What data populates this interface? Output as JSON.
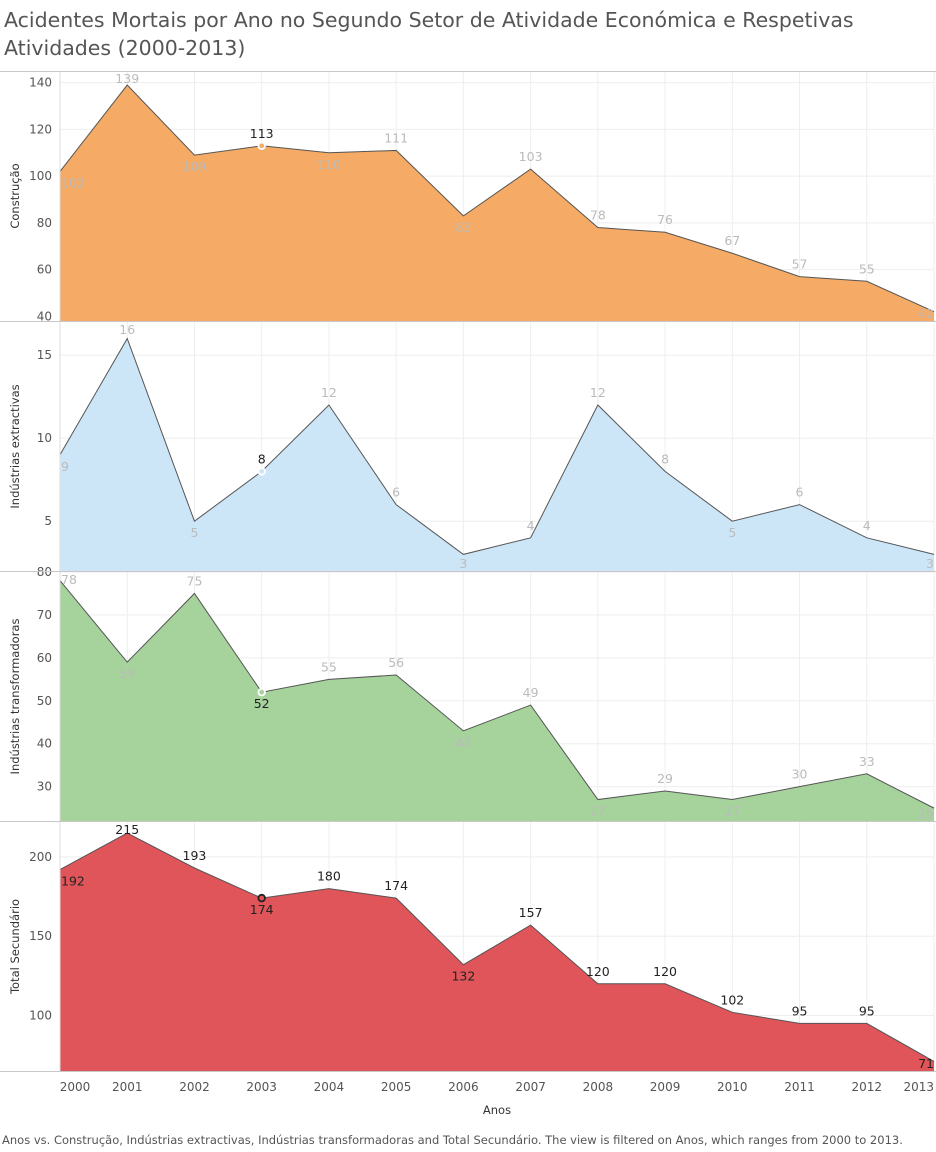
{
  "title": "Acidentes Mortais por Ano no Segundo Setor de Atividade Económica e Respetivas Atividades (2000-2013)",
  "caption": "Anos vs. Construção, Indústrias extractivas, Indústrias transformadoras and Total Secundário.  The view is filtered on Anos, which ranges from 2000 to 2013.",
  "chart_data": {
    "type": "area",
    "xlabel": "Anos",
    "x": [
      2000,
      2001,
      2002,
      2003,
      2004,
      2005,
      2006,
      2007,
      2008,
      2009,
      2010,
      2011,
      2012,
      2013
    ],
    "highlight_x": 2003,
    "grid": true,
    "series": [
      {
        "name": "Construção",
        "color": "#f5ab65",
        "values": [
          102,
          139,
          109,
          113,
          110,
          111,
          83,
          103,
          78,
          76,
          67,
          57,
          55,
          42
        ],
        "labels_shown": [
          "102",
          "139",
          "109",
          "113",
          "110",
          "111",
          "83",
          "103",
          "78",
          "76",
          "67",
          "57",
          "55",
          "42"
        ],
        "ylim": [
          38,
          145
        ],
        "yticks": [
          40,
          60,
          80,
          100,
          120,
          140
        ]
      },
      {
        "name": "Indústrias extractivas",
        "color": "#cce6f8",
        "values": [
          9,
          16,
          5,
          8,
          12,
          6,
          3,
          4,
          12,
          8,
          5,
          6,
          4,
          3
        ],
        "labels_shown": [
          "9",
          "16",
          "5",
          "8",
          "12",
          "6",
          "3",
          "4",
          "12",
          "8",
          "5",
          "6",
          "4",
          "3"
        ],
        "ylim": [
          2,
          17
        ],
        "yticks": [
          5,
          10,
          15
        ]
      },
      {
        "name": "Indústrias transformadoras",
        "color": "#a6d39c",
        "values": [
          78,
          59,
          75,
          52,
          55,
          56,
          43,
          49,
          27,
          29,
          27,
          30,
          33,
          25
        ],
        "labels_shown": [
          "78",
          "59",
          "75",
          "52",
          "55",
          "56",
          "43",
          "49",
          "27",
          "29",
          "27",
          "30",
          "33",
          "25"
        ],
        "ylim": [
          22,
          80
        ],
        "yticks": [
          30,
          40,
          50,
          60,
          70,
          80
        ]
      },
      {
        "name": "Total Secundário",
        "color": "#e0555a",
        "values": [
          192,
          215,
          193,
          174,
          180,
          174,
          132,
          157,
          120,
          120,
          102,
          95,
          95,
          71
        ],
        "labels_shown": [
          "192",
          "215",
          "193",
          "174",
          "180",
          "174",
          "132",
          "157",
          "120",
          "120",
          "102",
          "95",
          "95",
          "71"
        ],
        "ylim": [
          65,
          222
        ],
        "yticks": [
          100,
          150,
          200
        ]
      }
    ]
  }
}
